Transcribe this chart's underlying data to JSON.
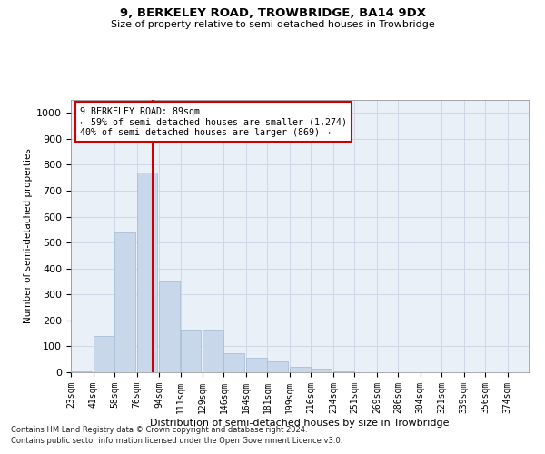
{
  "title1": "9, BERKELEY ROAD, TROWBRIDGE, BA14 9DX",
  "title2": "Size of property relative to semi-detached houses in Trowbridge",
  "xlabel": "Distribution of semi-detached houses by size in Trowbridge",
  "ylabel": "Number of semi-detached properties",
  "footnote1": "Contains HM Land Registry data © Crown copyright and database right 2024.",
  "footnote2": "Contains public sector information licensed under the Open Government Licence v3.0.",
  "property_label": "9 BERKELEY ROAD: 89sqm",
  "smaller_text": "← 59% of semi-detached houses are smaller (1,274)",
  "larger_text": "40% of semi-detached houses are larger (869) →",
  "property_sqm": 89,
  "bar_color": "#c8d8ea",
  "bar_edge_color": "#a8c0d8",
  "grid_color": "#d0d8e8",
  "bg_color": "#eaf0f8",
  "red_line_color": "#cc0000",
  "annotation_box_color": "#cc0000",
  "ylim": [
    0,
    1050
  ],
  "yticks": [
    0,
    100,
    200,
    300,
    400,
    500,
    600,
    700,
    800,
    900,
    1000
  ],
  "bin_labels": [
    "23sqm",
    "41sqm",
    "58sqm",
    "76sqm",
    "94sqm",
    "111sqm",
    "129sqm",
    "146sqm",
    "164sqm",
    "181sqm",
    "199sqm",
    "216sqm",
    "234sqm",
    "251sqm",
    "269sqm",
    "286sqm",
    "304sqm",
    "321sqm",
    "339sqm",
    "356sqm",
    "374sqm"
  ],
  "bin_starts": [
    23,
    41,
    58,
    76,
    94,
    111,
    129,
    146,
    164,
    181,
    199,
    216,
    234,
    251,
    269,
    286,
    304,
    321,
    339,
    356,
    374
  ],
  "bar_heights": [
    3,
    140,
    540,
    770,
    350,
    165,
    165,
    75,
    55,
    42,
    20,
    15,
    5,
    0,
    0,
    0,
    0,
    0,
    0,
    0,
    0
  ],
  "bin_width": 17
}
